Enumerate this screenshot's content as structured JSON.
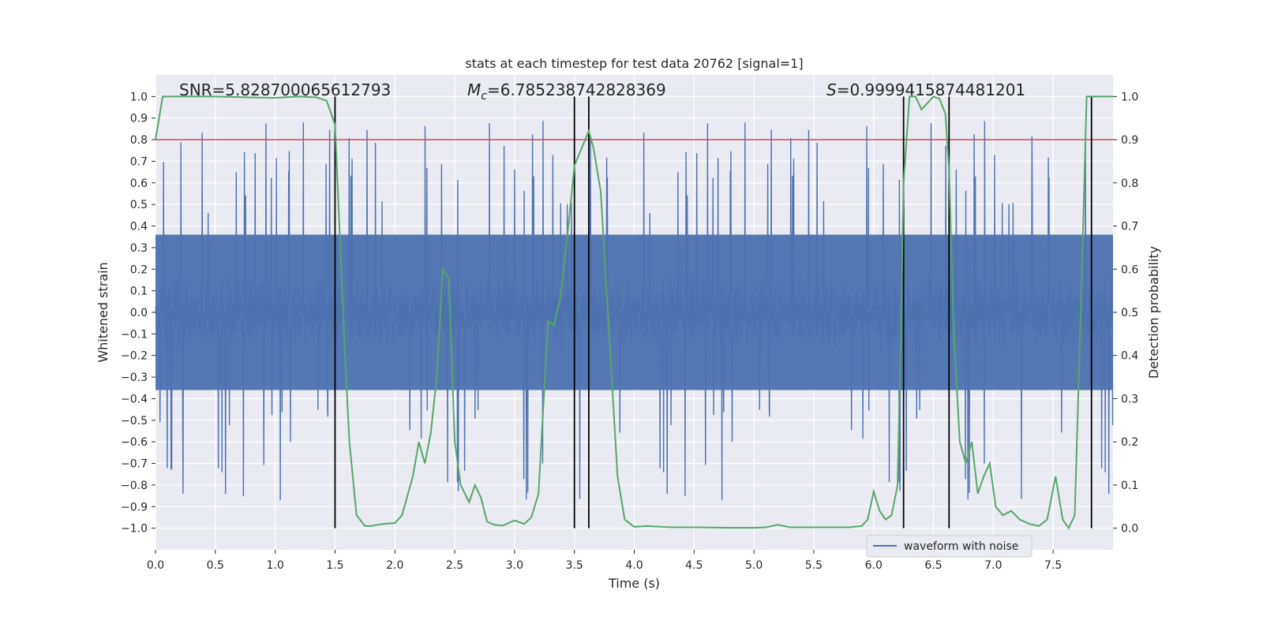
{
  "chart_data": {
    "type": "line",
    "title": "stats at each timestep for test data 20762 [signal=1]",
    "xlabel": "Time (s)",
    "ylabel": "Whitened strain",
    "ylabel_right": "Detection probability",
    "xlim": [
      0,
      8
    ],
    "ylim": [
      -1.1,
      1.1
    ],
    "ylim_right": [
      -0.05,
      1.05
    ],
    "xticks": [
      "0.0",
      "0.5",
      "1.0",
      "1.5",
      "2.0",
      "2.5",
      "3.0",
      "3.5",
      "4.0",
      "4.5",
      "5.0",
      "5.5",
      "6.0",
      "6.5",
      "7.0",
      "7.5"
    ],
    "yticks": [
      "−1.0",
      "−0.9",
      "−0.8",
      "−0.7",
      "−0.6",
      "−0.5",
      "−0.4",
      "−0.3",
      "−0.2",
      "−0.1",
      "0.0",
      "0.1",
      "0.2",
      "0.3",
      "0.4",
      "0.5",
      "0.6",
      "0.7",
      "0.8",
      "0.9",
      "1.0"
    ],
    "yticks_right": [
      "0.0",
      "0.1",
      "0.2",
      "0.3",
      "0.4",
      "0.5",
      "0.6",
      "0.7",
      "0.8",
      "0.9",
      "1.0"
    ],
    "grid": true,
    "annotations": {
      "snr": "SNR=5.828700065612793",
      "mc_symbol": "M",
      "mc_sub": "c",
      "mc_value": "=6.785238742828369",
      "s_symbol": "S",
      "s_value": "=0.9999415874481201"
    },
    "threshold": {
      "value": 0.9,
      "axis": "right",
      "color": "#c44e52"
    },
    "vertical_markers": [
      1.5,
      3.5,
      3.62,
      6.25,
      6.63,
      7.82
    ],
    "series": [
      {
        "name": "waveform with noise",
        "axis": "left",
        "color": "#4c72b0",
        "description": "dense noisy strain oscillating within roughly ±0.4 with spikes up to ±1.0"
      },
      {
        "name": "detection probability",
        "axis": "right",
        "color": "#55a868",
        "x": [
          0.0,
          0.06,
          0.2,
          0.5,
          0.8,
          1.0,
          1.2,
          1.35,
          1.43,
          1.5,
          1.58,
          1.62,
          1.68,
          1.75,
          1.8,
          1.9,
          2.0,
          2.06,
          2.15,
          2.2,
          2.25,
          2.3,
          2.35,
          2.4,
          2.45,
          2.5,
          2.55,
          2.62,
          2.67,
          2.72,
          2.77,
          2.83,
          2.9,
          3.0,
          3.08,
          3.14,
          3.2,
          3.28,
          3.33,
          3.38,
          3.45,
          3.5,
          3.56,
          3.62,
          3.66,
          3.72,
          3.78,
          3.86,
          3.92,
          4.0,
          4.1,
          4.3,
          4.5,
          4.8,
          5.0,
          5.1,
          5.2,
          5.3,
          5.5,
          5.8,
          5.9,
          5.95,
          6.0,
          6.05,
          6.1,
          6.15,
          6.2,
          6.23,
          6.25,
          6.3,
          6.35,
          6.4,
          6.45,
          6.5,
          6.55,
          6.6,
          6.63,
          6.67,
          6.72,
          6.77,
          6.82,
          6.87,
          6.92,
          6.97,
          7.02,
          7.08,
          7.15,
          7.22,
          7.3,
          7.38,
          7.45,
          7.52,
          7.58,
          7.63,
          7.68,
          7.73,
          7.78,
          7.82,
          7.87,
          7.92,
          8.0
        ],
        "y": [
          0.9,
          1.0,
          1.0,
          1.0,
          0.998,
          0.997,
          1.0,
          0.998,
          0.99,
          0.935,
          0.42,
          0.2,
          0.03,
          0.005,
          0.005,
          0.01,
          0.012,
          0.03,
          0.12,
          0.2,
          0.15,
          0.22,
          0.35,
          0.6,
          0.58,
          0.2,
          0.1,
          0.06,
          0.1,
          0.07,
          0.015,
          0.008,
          0.006,
          0.018,
          0.01,
          0.025,
          0.08,
          0.48,
          0.47,
          0.53,
          0.7,
          0.84,
          0.88,
          0.92,
          0.88,
          0.78,
          0.5,
          0.12,
          0.02,
          0.003,
          0.005,
          0.002,
          0.002,
          0.001,
          0.001,
          0.002,
          0.008,
          0.002,
          0.002,
          0.002,
          0.005,
          0.02,
          0.085,
          0.04,
          0.02,
          0.03,
          0.1,
          0.5,
          0.8,
          1.0,
          1.0,
          0.97,
          0.985,
          1.0,
          0.995,
          0.96,
          0.83,
          0.45,
          0.2,
          0.15,
          0.2,
          0.08,
          0.12,
          0.15,
          0.05,
          0.03,
          0.04,
          0.02,
          0.01,
          0.005,
          0.02,
          0.12,
          0.02,
          0.0,
          0.03,
          0.5,
          1.0,
          1.0,
          1.0,
          1.0,
          1.0
        ]
      }
    ],
    "legend": {
      "placement": "bottom-right",
      "entries": [
        "waveform with noise"
      ]
    }
  }
}
